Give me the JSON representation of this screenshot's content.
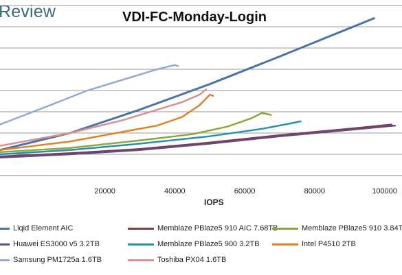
{
  "header": {
    "brand": "Review"
  },
  "chart_data": {
    "type": "line",
    "title": "VDI-FC-Monday-Login",
    "xlabel": "IOPS",
    "ylabel": "",
    "xlim": [
      -10000,
      105000
    ],
    "ylim": [
      0,
      8
    ],
    "x_ticks": [
      "20000",
      "40000",
      "60000",
      "80000",
      "100000"
    ],
    "x_tick_values": [
      20000,
      40000,
      60000,
      80000,
      100000
    ],
    "grid": true,
    "legend_position": "bottom",
    "series": [
      {
        "name": "Liqid Element AIC",
        "color": "#4a72a8",
        "points": [
          [
            -10000,
            1.2
          ],
          [
            10000,
            2.0
          ],
          [
            30000,
            3.1
          ],
          [
            50000,
            4.3
          ],
          [
            70000,
            5.6
          ],
          [
            85000,
            6.6
          ],
          [
            97000,
            7.4
          ]
        ]
      },
      {
        "name": "Memblaze PBlaze5 910 AIC 7.68TB",
        "color": "#8b3a3a",
        "points": [
          [
            -10000,
            0.9
          ],
          [
            10000,
            1.05
          ],
          [
            30000,
            1.25
          ],
          [
            50000,
            1.55
          ],
          [
            70000,
            1.9
          ],
          [
            90000,
            2.2
          ],
          [
            102000,
            2.4
          ]
        ]
      },
      {
        "name": "Memblaze PBlaze5 910 3.84TB",
        "color": "#8aa83c",
        "points": [
          [
            -10000,
            1.1
          ],
          [
            10000,
            1.3
          ],
          [
            30000,
            1.65
          ],
          [
            45000,
            1.95
          ],
          [
            55000,
            2.3
          ],
          [
            62000,
            2.7
          ],
          [
            65000,
            2.95
          ],
          [
            67500,
            2.85
          ]
        ]
      },
      {
        "name": "Huawei ES3000 v5 3.2TB",
        "color": "#5e4a8f",
        "points": [
          [
            -10000,
            0.85
          ],
          [
            10000,
            1.0
          ],
          [
            30000,
            1.2
          ],
          [
            50000,
            1.5
          ],
          [
            70000,
            1.85
          ],
          [
            90000,
            2.15
          ],
          [
            103000,
            2.35
          ]
        ]
      },
      {
        "name": "Memblaze PBlaze5 900 3.2TB",
        "color": "#2a8fa8",
        "points": [
          [
            -10000,
            1.0
          ],
          [
            10000,
            1.2
          ],
          [
            30000,
            1.5
          ],
          [
            50000,
            1.85
          ],
          [
            65000,
            2.2
          ],
          [
            73000,
            2.45
          ],
          [
            76000,
            2.55
          ]
        ]
      },
      {
        "name": "Intel P4510 2TB",
        "color": "#e0822a",
        "points": [
          [
            -10000,
            1.2
          ],
          [
            10000,
            1.6
          ],
          [
            25000,
            2.05
          ],
          [
            35000,
            2.35
          ],
          [
            42000,
            2.75
          ],
          [
            47000,
            3.3
          ],
          [
            50000,
            3.8
          ],
          [
            51000,
            3.75
          ]
        ]
      },
      {
        "name": "Samsung PM1725a 1.6TB",
        "color": "#8fadd0",
        "points": [
          [
            -10000,
            2.4
          ],
          [
            5000,
            3.35
          ],
          [
            15000,
            4.0
          ],
          [
            25000,
            4.5
          ],
          [
            35000,
            5.0
          ],
          [
            40000,
            5.2
          ],
          [
            41000,
            5.15
          ]
        ]
      },
      {
        "name": "Toshiba PX04 1.6TB",
        "color": "#d89090",
        "points": [
          [
            -10000,
            1.4
          ],
          [
            10000,
            2.0
          ],
          [
            25000,
            2.6
          ],
          [
            35000,
            3.1
          ],
          [
            42000,
            3.45
          ],
          [
            47000,
            3.8
          ],
          [
            49000,
            4.05
          ]
        ]
      }
    ]
  }
}
